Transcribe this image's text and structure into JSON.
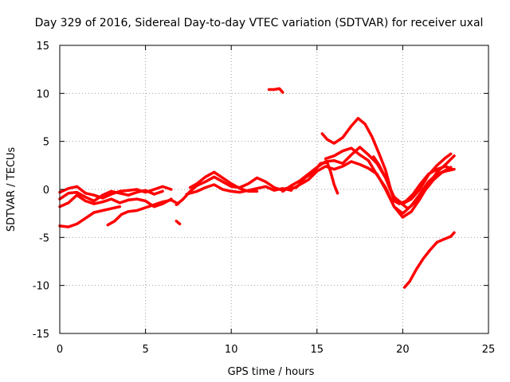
{
  "chart_data": {
    "type": "scatter",
    "title": "Day 329 of 2016, Sidereal Day-to-day VTEC variation (SDTVAR) for receiver uxal",
    "xlabel": "GPS time / hours",
    "ylabel": "SDTVAR / TECUs",
    "xlim": [
      0,
      25
    ],
    "ylim": [
      -15,
      15
    ],
    "xticks": [
      0,
      5,
      10,
      15,
      20,
      25
    ],
    "yticks": [
      -15,
      -10,
      -5,
      0,
      5,
      10,
      15
    ],
    "xtick_labels": [
      "0",
      "5",
      "10",
      "15",
      "20",
      "25"
    ],
    "ytick_labels": [
      "-15",
      "-10",
      "-5",
      "0",
      "5",
      "10",
      "15"
    ],
    "grid": true,
    "legend": false,
    "color": "#ff0000",
    "series": [
      {
        "name": "trace-1",
        "points": [
          [
            0,
            -1.0
          ],
          [
            0.5,
            -0.4
          ],
          [
            1.0,
            -0.3
          ],
          [
            1.5,
            -0.8
          ],
          [
            2.0,
            -1.2
          ],
          [
            2.5,
            -0.6
          ],
          [
            3.0,
            -0.2
          ],
          [
            3.5,
            -0.4
          ],
          [
            4.0,
            -0.6
          ],
          [
            4.5,
            -0.3
          ],
          [
            5.0,
            -0.1
          ],
          [
            5.5,
            -0.5
          ],
          [
            6.0,
            -0.2
          ]
        ]
      },
      {
        "name": "trace-2",
        "points": [
          [
            0,
            -1.8
          ],
          [
            0.5,
            -1.4
          ],
          [
            1.0,
            -0.6
          ],
          [
            1.5,
            -1.2
          ],
          [
            2.0,
            -1.5
          ],
          [
            2.5,
            -1.3
          ],
          [
            3.0,
            -1.0
          ],
          [
            3.5,
            -1.4
          ],
          [
            4.0,
            -1.1
          ],
          [
            4.5,
            -1.0
          ],
          [
            5.0,
            -1.2
          ],
          [
            5.5,
            -1.8
          ],
          [
            6.0,
            -1.5
          ],
          [
            6.5,
            -1.0
          ]
        ]
      },
      {
        "name": "trace-3",
        "points": [
          [
            0,
            -0.3
          ],
          [
            0.5,
            0.1
          ],
          [
            1.0,
            0.3
          ],
          [
            1.5,
            -0.4
          ],
          [
            2.0,
            -0.6
          ],
          [
            2.5,
            -0.9
          ],
          [
            3.0,
            -0.5
          ],
          [
            3.5,
            -0.2
          ],
          [
            4.0,
            -0.1
          ],
          [
            4.5,
            0.0
          ],
          [
            5.0,
            -0.3
          ],
          [
            5.5,
            0.0
          ],
          [
            6.0,
            0.3
          ],
          [
            6.5,
            0.0
          ]
        ]
      },
      {
        "name": "trace-4",
        "points": [
          [
            0,
            -3.8
          ],
          [
            0.5,
            -3.9
          ],
          [
            1.0,
            -3.6
          ],
          [
            1.5,
            -3.0
          ],
          [
            2.0,
            -2.4
          ],
          [
            2.5,
            -2.2
          ],
          [
            3.0,
            -2.0
          ],
          [
            3.5,
            -1.8
          ]
        ]
      },
      {
        "name": "trace-5",
        "points": [
          [
            2.8,
            -3.7
          ],
          [
            3.2,
            -3.3
          ],
          [
            3.6,
            -2.6
          ],
          [
            4.0,
            -2.3
          ],
          [
            4.5,
            -2.2
          ],
          [
            5.0,
            -1.9
          ],
          [
            5.5,
            -1.6
          ],
          [
            6.0,
            -1.3
          ],
          [
            6.5,
            -1.1
          ],
          [
            6.9,
            -1.5
          ]
        ]
      },
      {
        "name": "trace-6",
        "points": [
          [
            6.8,
            -3.3
          ],
          [
            7.0,
            -3.6
          ]
        ]
      },
      {
        "name": "trace-7",
        "points": [
          [
            6.8,
            -1.6
          ],
          [
            7.2,
            -1.0
          ],
          [
            7.6,
            -0.2
          ],
          [
            8.0,
            0.4
          ],
          [
            8.5,
            0.8
          ],
          [
            9.0,
            1.3
          ],
          [
            9.5,
            0.8
          ],
          [
            10.0,
            0.3
          ],
          [
            10.5,
            0.2
          ],
          [
            11.0,
            0.6
          ],
          [
            11.5,
            1.2
          ],
          [
            12.0,
            0.8
          ],
          [
            12.5,
            0.2
          ],
          [
            13.0,
            -0.1
          ]
        ]
      },
      {
        "name": "trace-8",
        "points": [
          [
            7.4,
            -0.5
          ],
          [
            8.0,
            -0.2
          ],
          [
            8.5,
            0.2
          ],
          [
            9.0,
            0.5
          ],
          [
            9.5,
            0.0
          ],
          [
            10.0,
            -0.2
          ],
          [
            10.5,
            -0.3
          ],
          [
            11.0,
            -0.1
          ],
          [
            11.5,
            0.1
          ],
          [
            12.0,
            0.3
          ],
          [
            12.5,
            -0.1
          ],
          [
            13.0,
            0.1
          ],
          [
            13.5,
            -0.1
          ]
        ]
      },
      {
        "name": "trace-9",
        "points": [
          [
            7.6,
            0.2
          ],
          [
            8.0,
            0.6
          ],
          [
            8.5,
            1.3
          ],
          [
            9.0,
            1.8
          ],
          [
            9.5,
            1.2
          ],
          [
            10.0,
            0.6
          ],
          [
            10.5,
            0.1
          ],
          [
            11.0,
            -0.2
          ],
          [
            11.5,
            -0.2
          ]
        ]
      },
      {
        "name": "trace-10",
        "points": [
          [
            12.2,
            10.4
          ],
          [
            12.5,
            10.4
          ],
          [
            12.8,
            10.5
          ],
          [
            13.0,
            10.1
          ]
        ]
      },
      {
        "name": "trace-11",
        "points": [
          [
            13.0,
            -0.2
          ],
          [
            13.5,
            0.4
          ],
          [
            14.0,
            0.9
          ],
          [
            14.5,
            1.6
          ],
          [
            15.0,
            2.3
          ],
          [
            15.5,
            2.9
          ],
          [
            16.0,
            3.0
          ],
          [
            16.5,
            2.7
          ],
          [
            17.0,
            3.6
          ],
          [
            17.5,
            4.4
          ],
          [
            18.0,
            3.6
          ],
          [
            18.5,
            2.7
          ],
          [
            19.0,
            1.2
          ],
          [
            19.5,
            -0.8
          ],
          [
            20.0,
            -1.5
          ],
          [
            20.5,
            -1.0
          ],
          [
            21.0,
            0.0
          ],
          [
            21.5,
            1.5
          ],
          [
            22.0,
            2.5
          ],
          [
            22.5,
            3.3
          ],
          [
            22.8,
            3.7
          ]
        ]
      },
      {
        "name": "trace-12",
        "points": [
          [
            13.5,
            0.0
          ],
          [
            14.0,
            0.5
          ],
          [
            14.5,
            1.0
          ],
          [
            15.0,
            1.9
          ],
          [
            15.5,
            2.4
          ],
          [
            16.0,
            2.1
          ],
          [
            16.5,
            2.4
          ],
          [
            17.0,
            2.9
          ],
          [
            17.5,
            2.6
          ],
          [
            18.0,
            2.2
          ],
          [
            18.5,
            1.6
          ],
          [
            19.0,
            0.0
          ],
          [
            19.5,
            -1.8
          ],
          [
            20.0,
            -2.9
          ],
          [
            20.5,
            -2.3
          ],
          [
            21.0,
            -1.0
          ],
          [
            21.5,
            0.5
          ],
          [
            22.0,
            1.8
          ],
          [
            22.5,
            2.6
          ],
          [
            23.0,
            3.5
          ]
        ]
      },
      {
        "name": "trace-13",
        "points": [
          [
            13.2,
            0.1
          ],
          [
            13.8,
            0.2
          ],
          [
            14.3,
            1.2
          ],
          [
            14.8,
            1.8
          ],
          [
            15.2,
            2.7
          ],
          [
            15.6,
            2.8
          ],
          [
            15.8,
            1.8
          ],
          [
            16.0,
            0.5
          ],
          [
            16.2,
            -0.4
          ]
        ]
      },
      {
        "name": "trace-14",
        "points": [
          [
            15.3,
            5.8
          ],
          [
            15.6,
            5.2
          ],
          [
            16.0,
            4.8
          ],
          [
            16.5,
            5.4
          ],
          [
            17.0,
            6.6
          ],
          [
            17.4,
            7.4
          ],
          [
            17.8,
            6.8
          ],
          [
            18.2,
            5.5
          ],
          [
            18.6,
            3.8
          ],
          [
            19.0,
            2.0
          ],
          [
            19.3,
            0.0
          ],
          [
            19.5,
            -1.2
          ],
          [
            19.8,
            -1.5
          ],
          [
            20.2,
            -1.2
          ],
          [
            20.6,
            -0.5
          ],
          [
            21.0,
            0.5
          ],
          [
            21.5,
            1.6
          ],
          [
            22.0,
            2.1
          ],
          [
            22.5,
            2.4
          ],
          [
            22.9,
            2.1
          ]
        ]
      },
      {
        "name": "trace-15",
        "points": [
          [
            15.5,
            3.2
          ],
          [
            16.0,
            3.5
          ],
          [
            16.5,
            4.0
          ],
          [
            17.0,
            4.3
          ],
          [
            17.5,
            3.6
          ],
          [
            18.0,
            3.0
          ],
          [
            18.5,
            1.5
          ],
          [
            19.0,
            0.2
          ],
          [
            19.5,
            -1.8
          ],
          [
            20.0,
            -2.5
          ],
          [
            20.5,
            -1.7
          ],
          [
            21.0,
            -0.5
          ],
          [
            21.5,
            0.8
          ],
          [
            22.0,
            1.6
          ],
          [
            22.5,
            1.9
          ],
          [
            23.0,
            2.1
          ]
        ]
      },
      {
        "name": "trace-16",
        "points": [
          [
            18.3,
            3.4
          ],
          [
            18.6,
            2.6
          ],
          [
            19.0,
            1.2
          ],
          [
            19.4,
            -0.6
          ],
          [
            19.8,
            -1.3
          ],
          [
            20.3,
            -2.0
          ],
          [
            20.8,
            -1.2
          ],
          [
            21.3,
            -0.1
          ],
          [
            21.8,
            1.0
          ],
          [
            22.3,
            1.8
          ],
          [
            22.8,
            2.3
          ]
        ]
      },
      {
        "name": "trace-17",
        "points": [
          [
            20.1,
            -10.2
          ],
          [
            20.4,
            -9.6
          ],
          [
            20.8,
            -8.3
          ],
          [
            21.2,
            -7.2
          ],
          [
            21.6,
            -6.3
          ],
          [
            22.0,
            -5.5
          ],
          [
            22.4,
            -5.2
          ],
          [
            22.8,
            -4.9
          ],
          [
            23.0,
            -4.5
          ]
        ]
      }
    ]
  }
}
